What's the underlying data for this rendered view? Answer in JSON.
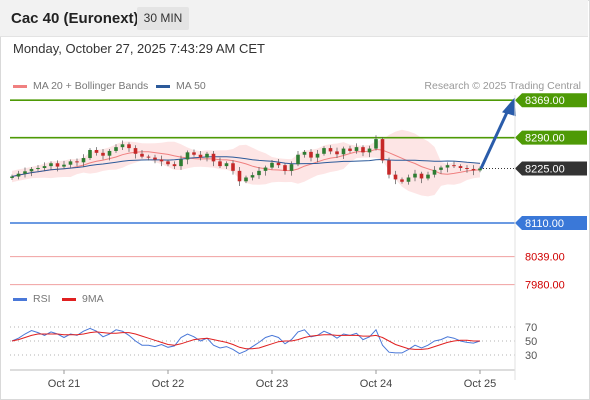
{
  "header": {
    "title": "Cac 40 (Euronext)",
    "timeframe_button": "30 MIN"
  },
  "datetime": "Monday, October 27, 2025 7:43:29 AM CET",
  "legend": {
    "ma_label": "MA 20 + Bollinger Bands",
    "ma50_label": "MA 50",
    "credit": "Research © 2025 Trading Central"
  },
  "rsi_legend": {
    "rsi_label": "RSI",
    "ma_label": "9MA"
  },
  "colors": {
    "resistance": "#4e9a06",
    "support_strong": "#3a78d8",
    "support_weak": "#f0a0a0",
    "current_tag": "#333333",
    "arrow": "#2a5caa",
    "bollinger": "#fde0e0",
    "ma20": "#f08080",
    "ma50": "#2c5a9a",
    "rsi": "#4a78d8",
    "rsi_ma": "#e02020"
  },
  "chart_data": [
    {
      "type": "candlestick",
      "x_labels": [
        "Oct 21",
        "Oct 22",
        "Oct 23",
        "Oct 24",
        "Oct 25"
      ],
      "ylim": [
        7975,
        8380
      ],
      "levels": [
        {
          "value": 8369.0,
          "label": "8369.00",
          "kind": "resistance"
        },
        {
          "value": 8290.0,
          "label": "8290.00",
          "kind": "resistance"
        },
        {
          "value": 8225.0,
          "label": "8225.00",
          "kind": "current"
        },
        {
          "value": 8110.0,
          "label": "8110.00",
          "kind": "support_strong"
        },
        {
          "value": 8039.0,
          "label": "8039.00",
          "kind": "support_weak"
        },
        {
          "value": 7980.0,
          "label": "7980.00",
          "kind": "support_weak"
        }
      ],
      "close_series": [
        8208,
        8214,
        8219,
        8224,
        8226,
        8230,
        8236,
        8229,
        8233,
        8240,
        8238,
        8247,
        8264,
        8258,
        8252,
        8262,
        8270,
        8276,
        8268,
        8256,
        8250,
        8248,
        8244,
        8240,
        8234,
        8230,
        8244,
        8259,
        8254,
        8248,
        8256,
        8240,
        8230,
        8236,
        8220,
        8198,
        8206,
        8211,
        8220,
        8227,
        8237,
        8232,
        8220,
        8234,
        8254,
        8260,
        8248,
        8256,
        8268,
        8261,
        8255,
        8267,
        8262,
        8270,
        8259,
        8267,
        8287,
        8242,
        8212,
        8202,
        8197,
        8206,
        8214,
        8204,
        8212,
        8222,
        8227,
        8232,
        8230,
        8226,
        8224,
        8221,
        8225
      ],
      "projection": {
        "from": 8225.0,
        "to": 8369.0
      }
    },
    {
      "type": "line",
      "title": "RSI",
      "ylim": [
        20,
        80
      ],
      "y_ticks": [
        70,
        50,
        30
      ],
      "series": [
        {
          "name": "RSI",
          "values": [
            50,
            54,
            60,
            65,
            62,
            58,
            63,
            60,
            55,
            60,
            58,
            64,
            68,
            64,
            56,
            60,
            66,
            64,
            58,
            50,
            44,
            44,
            42,
            45,
            41,
            43,
            55,
            60,
            56,
            50,
            54,
            44,
            40,
            42,
            38,
            32,
            36,
            42,
            48,
            55,
            58,
            55,
            46,
            52,
            63,
            66,
            56,
            58,
            64,
            60,
            54,
            60,
            58,
            61,
            52,
            56,
            66,
            44,
            34,
            33,
            33,
            38,
            44,
            40,
            44,
            50,
            52,
            56,
            54,
            50,
            48,
            47,
            50
          ]
        },
        {
          "name": "9MA",
          "values": [
            50,
            52,
            55,
            58,
            60,
            60,
            60,
            60,
            59,
            59,
            59,
            60,
            62,
            63,
            62,
            61,
            61,
            62,
            62,
            60,
            57,
            54,
            51,
            48,
            45,
            44,
            46,
            49,
            52,
            53,
            54,
            52,
            50,
            48,
            45,
            41,
            39,
            39,
            40,
            43,
            46,
            49,
            50,
            50,
            52,
            55,
            57,
            58,
            59,
            59,
            58,
            58,
            58,
            58,
            57,
            57,
            58,
            55,
            50,
            45,
            42,
            39,
            38,
            38,
            39,
            42,
            45,
            48,
            50,
            51,
            51,
            50,
            50
          ]
        }
      ]
    }
  ]
}
